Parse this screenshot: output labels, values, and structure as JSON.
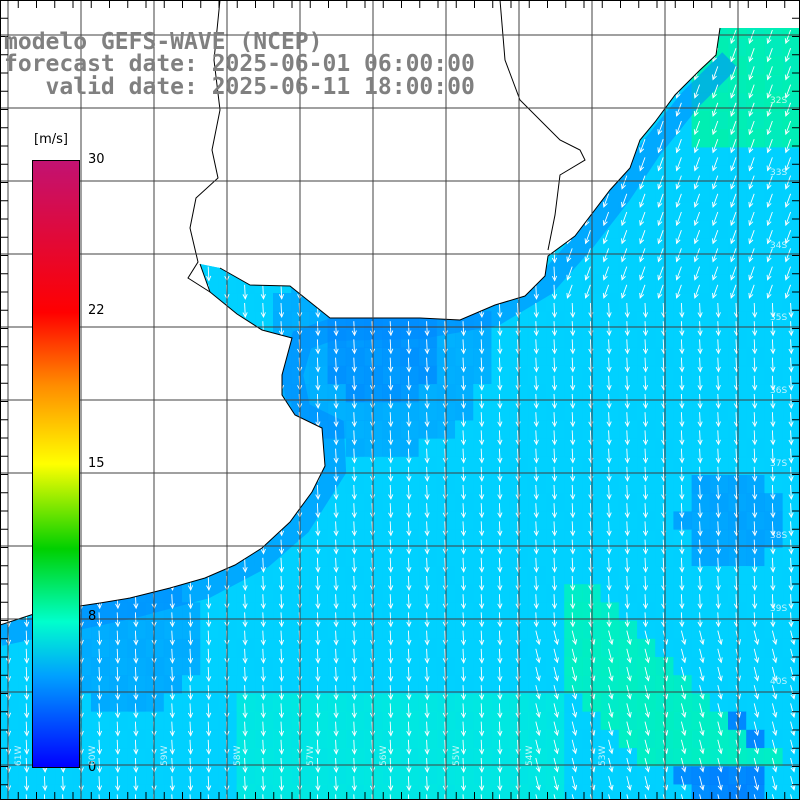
{
  "title": {
    "line1": "modelo GEFS-WAVE (NCEP)",
    "line2": "forecast date: 2025-06-01 06:00:00",
    "line3": "   valid date: 2025-06-11 18:00:00"
  },
  "colorbar": {
    "unit": "[m/s]",
    "ticks": [
      "30",
      "22",
      "15",
      "8",
      "0"
    ],
    "range": [
      0,
      30
    ]
  },
  "grid": {
    "lat_labels": [
      "32S",
      "33S",
      "34S",
      "35S",
      "36S",
      "37S",
      "38S",
      "39S",
      "40S"
    ],
    "lon_labels": [
      "61W",
      "60W",
      "59W",
      "58W",
      "57W",
      "56W",
      "55W",
      "54W",
      "53W"
    ]
  },
  "colors": {
    "land": "#ffffff",
    "coast": "#000000",
    "grid": "#404040",
    "arrow": "#ffffff",
    "title": "#808080"
  }
}
